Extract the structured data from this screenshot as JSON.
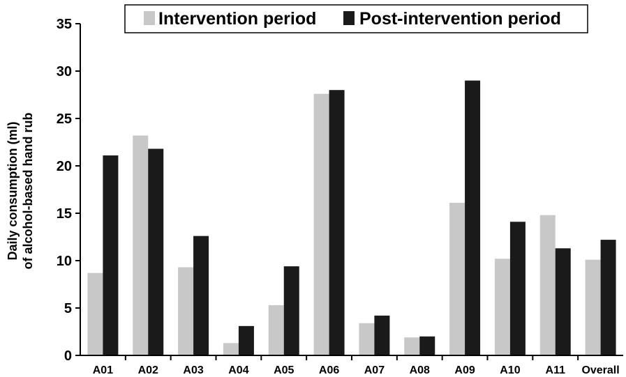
{
  "chart_data": {
    "type": "bar",
    "categories": [
      "A01",
      "A02",
      "A03",
      "A04",
      "A05",
      "A06",
      "A07",
      "A08",
      "A09",
      "A10",
      "A11",
      "Overall"
    ],
    "series": [
      {
        "name": "Intervention period",
        "color": "#c8c8c8",
        "values": [
          8.7,
          23.2,
          9.3,
          1.3,
          5.3,
          27.6,
          3.4,
          1.9,
          16.1,
          10.2,
          14.8,
          10.1
        ]
      },
      {
        "name": "Post-intervention period",
        "color": "#1a1a1a",
        "values": [
          21.1,
          21.8,
          12.6,
          3.1,
          9.4,
          28.0,
          4.2,
          2.0,
          29.0,
          14.1,
          11.3,
          12.2
        ]
      }
    ],
    "ylabel_line1": "Daily consumption (ml)",
    "ylabel_line2": "of alcohol-based hand rub",
    "xlabel": "",
    "ylim": [
      0,
      35
    ],
    "yticks": [
      0,
      5,
      10,
      15,
      20,
      25,
      30,
      35
    ],
    "grid": false,
    "legend_position": "top-center"
  }
}
